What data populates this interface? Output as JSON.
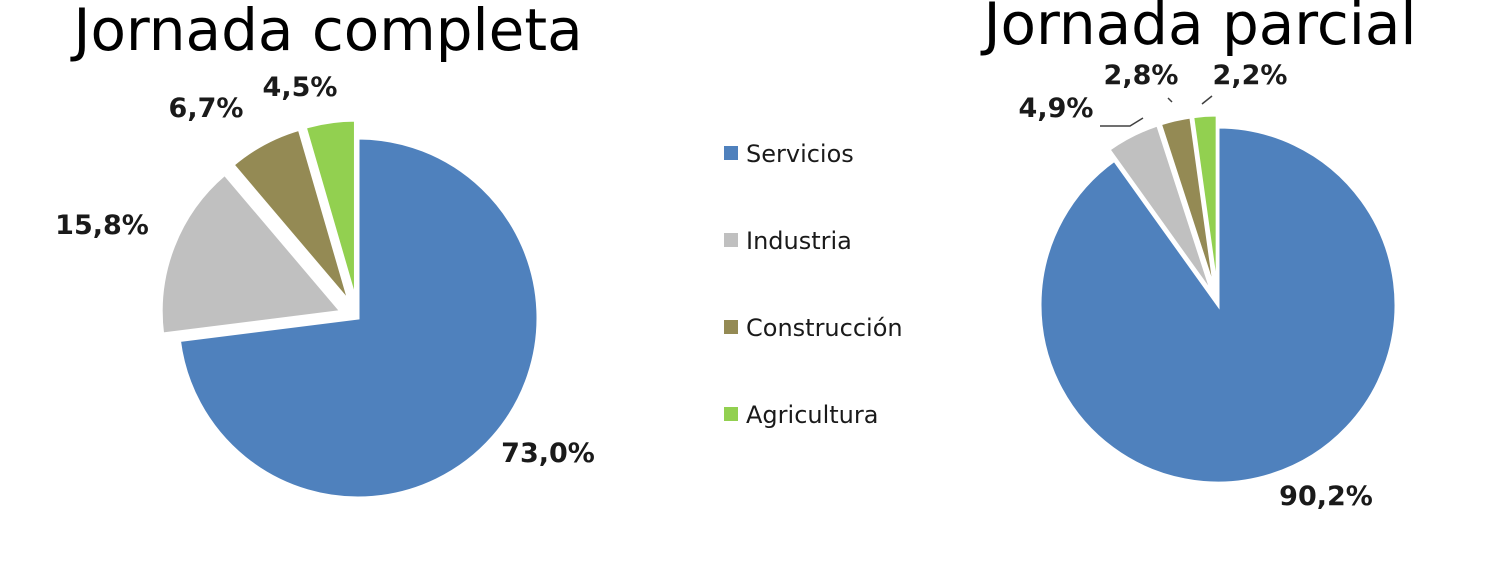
{
  "chart_data": [
    {
      "type": "pie",
      "title": "Jornada completa",
      "categories": [
        "Servicios",
        "Industria",
        "Construcción",
        "Agricultura"
      ],
      "values": [
        73.0,
        15.8,
        6.7,
        4.5
      ],
      "labels": [
        "73,0%",
        "15,8%",
        "6,7%",
        "4,5%"
      ],
      "exploded": [
        "Industria",
        "Construcción",
        "Agricultura"
      ]
    },
    {
      "type": "pie",
      "title": "Jornada parcial",
      "categories": [
        "Servicios",
        "Industria",
        "Construcción",
        "Agricultura"
      ],
      "values": [
        90.2,
        4.9,
        2.8,
        2.2
      ],
      "labels": [
        "90,2%",
        "4,9%",
        "2,8%",
        "2,2%"
      ],
      "exploded": [
        "Industria",
        "Construcción",
        "Agricultura"
      ]
    }
  ],
  "legend": {
    "placement": "center",
    "items": [
      {
        "label": "Servicios",
        "color": "#4f81bd"
      },
      {
        "label": "Industria",
        "color": "#c0c0c0"
      },
      {
        "label": "Construcción",
        "color": "#948a54"
      },
      {
        "label": "Agricultura",
        "color": "#92d050"
      }
    ]
  }
}
